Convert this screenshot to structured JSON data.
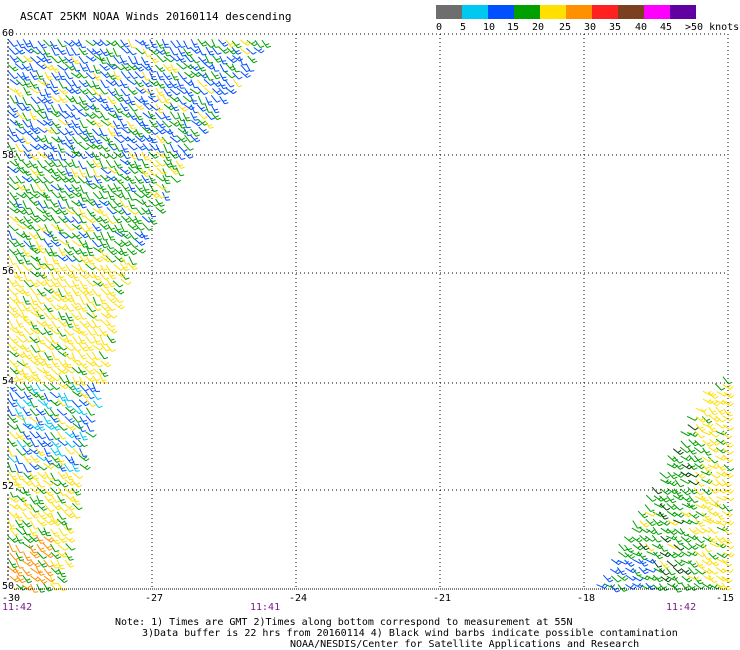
{
  "title": "ASCAT 25KM NOAA Winds 20160114 descending",
  "legend": {
    "labels": [
      "0",
      "5",
      "10",
      "15",
      "20",
      "25",
      "30",
      "35",
      "40",
      "45",
      ">50 knots"
    ],
    "colors": [
      "#6e6e6e",
      "#00c8f0",
      "#0050ff",
      "#00a000",
      "#ffe000",
      "#ff9000",
      "#ff2020",
      "#7a4020",
      "#ff00ff",
      "#6000a0"
    ]
  },
  "map": {
    "lat_labels": [
      "60",
      "58",
      "56",
      "54",
      "52",
      "50"
    ],
    "lon_labels": [
      "-30",
      "-27",
      "-24",
      "-21",
      "-18",
      "-15"
    ],
    "time_labels": [
      "11:42",
      "11:41",
      "11:42"
    ]
  },
  "notes": [
    "Note: 1) Times are GMT 2)Times along bottom correspond to measurement at 55N",
    "3)Data buffer is 22 hrs from 20160114 4) Black wind barbs indicate possible contamination",
    "NOAA/NESDIS/Center for Satellite Applications and Research"
  ],
  "swaths": [
    {
      "name": "left-swath",
      "polygon_lonlat": [
        [
          -30,
          60
        ],
        [
          -24.6,
          60
        ],
        [
          -26.2,
          58.2
        ],
        [
          -27.6,
          56
        ],
        [
          -28.6,
          52
        ],
        [
          -28.9,
          50
        ],
        [
          -30,
          50
        ]
      ]
    },
    {
      "name": "right-swath",
      "polygon_lonlat": [
        [
          -15,
          54.2
        ],
        [
          -15,
          50
        ],
        [
          -17.8,
          50
        ],
        [
          -15.6,
          53.8
        ]
      ]
    }
  ]
}
